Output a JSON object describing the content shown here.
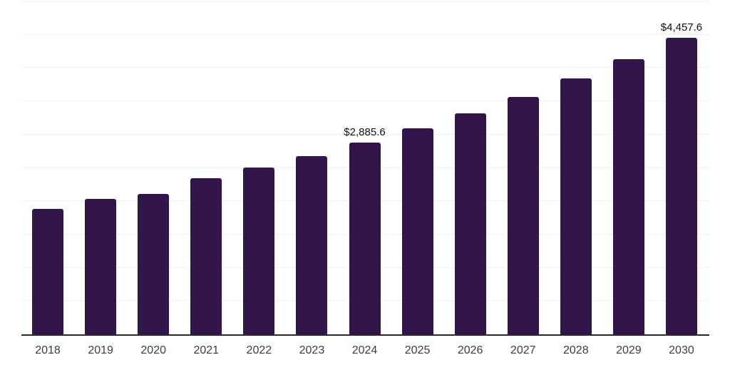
{
  "chart_data": {
    "type": "bar",
    "title": "",
    "xlabel": "",
    "ylabel": "",
    "categories": [
      "2018",
      "2019",
      "2020",
      "2021",
      "2022",
      "2023",
      "2024",
      "2025",
      "2026",
      "2027",
      "2028",
      "2029",
      "2030"
    ],
    "values": [
      1888,
      2030,
      2112,
      2342,
      2509,
      2676,
      2885.6,
      3093,
      3317,
      3564,
      3841,
      4128,
      4457.6
    ],
    "data_labels": {
      "2024": "$2,885.6",
      "2030": "$4,457.6"
    },
    "ylim": [
      0,
      5000
    ],
    "grid_step": 500,
    "grid": "horizontal",
    "legend_position": "none",
    "colors": {
      "bar": "#32154b",
      "gridline": "#efefef",
      "axis_line": "#2b2b2b",
      "tick_label": "#3d3d3d",
      "data_label": "#111111",
      "background": "#ffffff"
    }
  }
}
